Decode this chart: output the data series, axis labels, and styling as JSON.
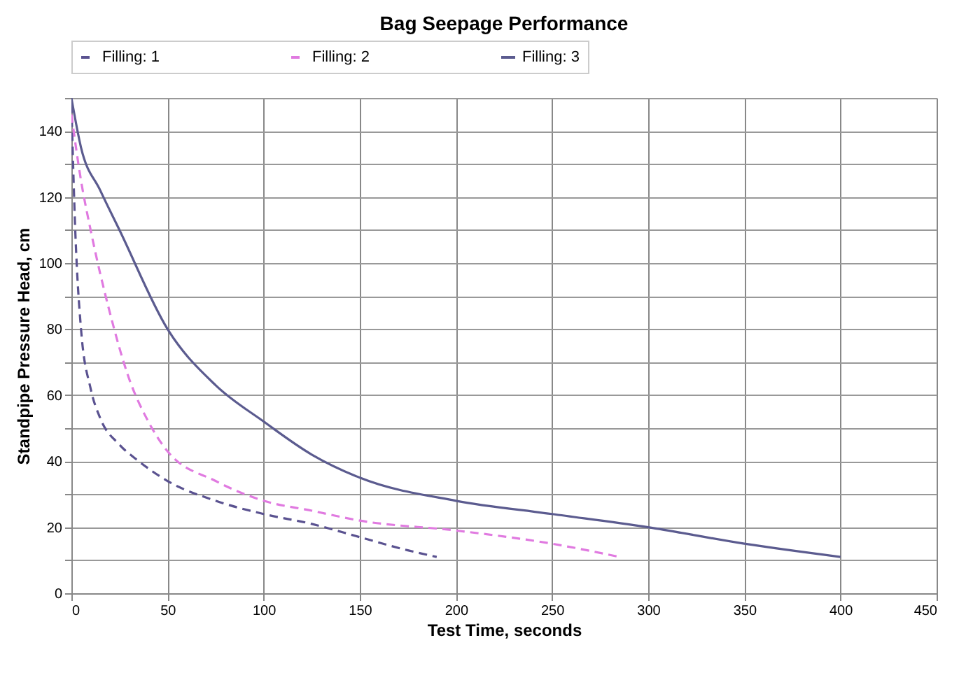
{
  "chart_data": {
    "type": "line",
    "title": "Bag Seepage Performance",
    "xlabel": "Test Time, seconds",
    "ylabel": "Standpipe Pressure Head, cm",
    "xlim": [
      0,
      450
    ],
    "xticks": [
      0,
      50,
      100,
      150,
      200,
      250,
      300,
      350,
      400,
      450
    ],
    "ylim": [
      0,
      150
    ],
    "yticks": [
      0,
      {
        "value": 10,
        "label": null
      },
      20,
      {
        "value": 30,
        "label": null
      },
      40,
      {
        "value": 50,
        "label": null
      },
      60,
      {
        "value": 70,
        "label": null
      },
      80,
      {
        "value": 90,
        "label": null
      },
      100,
      {
        "value": 110,
        "label": null
      },
      120,
      {
        "value": 130,
        "label": null
      },
      140,
      {
        "value": 150,
        "label": null
      }
    ],
    "grid": true,
    "legend": "top",
    "marker": "none",
    "series": [
      {
        "name": "Filling: 1",
        "color": "#5a5290",
        "line_style": "dashed",
        "x": [
          0,
          2,
          5,
          10,
          15,
          25,
          35,
          50,
          75,
          100,
          125,
          150,
          175,
          190
        ],
        "values": [
          148,
          110,
          80,
          62,
          53,
          45,
          40,
          34,
          28,
          24,
          21,
          17,
          13,
          11
        ]
      },
      {
        "name": "Filling: 2",
        "color": "#e07ae0",
        "line_style": "dashed",
        "x": [
          0,
          5,
          10,
          20,
          30,
          40,
          50,
          75,
          100,
          125,
          150,
          200,
          250,
          285
        ],
        "values": [
          145,
          125,
          110,
          85,
          65,
          52,
          43,
          34,
          28,
          25,
          22,
          19,
          15,
          11
        ]
      },
      {
        "name": "Filling: 3",
        "color": "#5b5b8f",
        "line_style": "solid",
        "x": [
          0,
          5,
          15,
          25,
          50,
          75,
          100,
          125,
          150,
          200,
          250,
          300,
          350,
          400
        ],
        "values": [
          150,
          135,
          122,
          110,
          80,
          63,
          52,
          42,
          35,
          28,
          24,
          20,
          15,
          11
        ]
      }
    ]
  }
}
